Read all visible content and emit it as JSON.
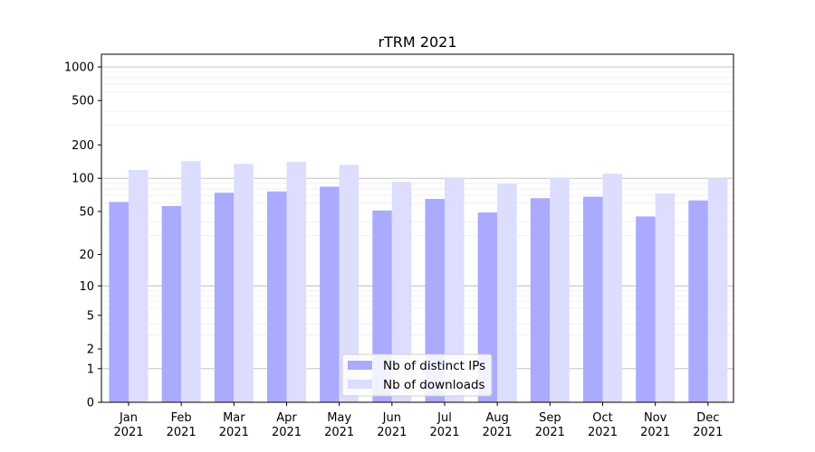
{
  "chart_data": {
    "type": "bar",
    "title": "rTRM 2021",
    "xlabel": "",
    "ylabel": "",
    "y_scale": "log1p",
    "ylim": [
      0,
      1300
    ],
    "y_ticks": [
      0,
      1,
      2,
      5,
      10,
      20,
      50,
      100,
      200,
      500,
      1000
    ],
    "y_tick_labels": [
      "0",
      "1",
      "2",
      "5",
      "10",
      "20",
      "50",
      "100",
      "200",
      "500",
      "1000"
    ],
    "categories": [
      "Jan\n2021",
      "Feb\n2021",
      "Mar\n2021",
      "Apr\n2021",
      "May\n2021",
      "Jun\n2021",
      "Jul\n2021",
      "Aug\n2021",
      "Sep\n2021",
      "Oct\n2021",
      "Nov\n2021",
      "Dec\n2021"
    ],
    "series": [
      {
        "name": "Nb of distinct IPs",
        "color": "#aaaaff",
        "values": [
          61,
          56,
          74,
          76,
          84,
          51,
          65,
          49,
          66,
          68,
          45,
          63
        ]
      },
      {
        "name": "Nb of downloads",
        "color": "#ddddff",
        "values": [
          119,
          143,
          135,
          141,
          132,
          93,
          102,
          89,
          101,
          110,
          73,
          100
        ]
      }
    ],
    "grid": true,
    "legend": "lower-center"
  }
}
